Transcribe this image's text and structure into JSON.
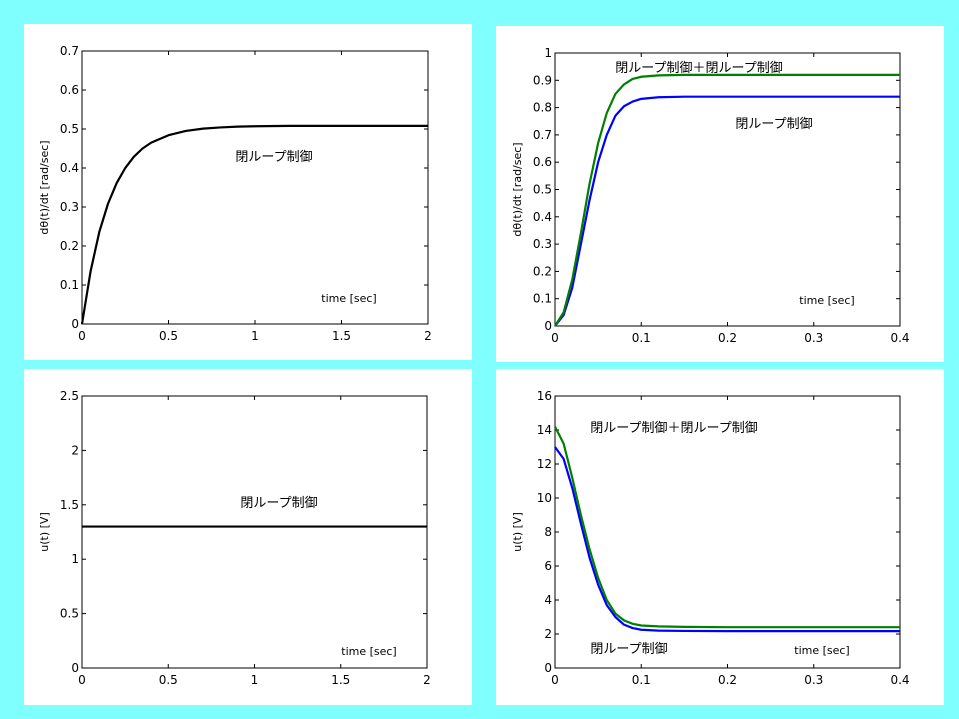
{
  "chart_data": [
    {
      "type": "line",
      "panel": "top-left",
      "xlabel": "time [sec]",
      "ylabel": "dθ(t)/dt [rad/sec]",
      "xlim": [
        0,
        2
      ],
      "ylim": [
        0,
        0.7
      ],
      "xticks": [
        "0",
        "0.5",
        "1",
        "1.5",
        "2"
      ],
      "yticks": [
        "0",
        "0.1",
        "0.2",
        "0.3",
        "0.4",
        "0.5",
        "0.6",
        "0.7"
      ],
      "annotations": [
        "閉ループ制御"
      ],
      "series": [
        {
          "color": "#000000",
          "x": [
            0,
            0.05,
            0.1,
            0.15,
            0.2,
            0.25,
            0.3,
            0.35,
            0.4,
            0.5,
            0.6,
            0.7,
            0.8,
            0.9,
            1.0,
            1.2,
            1.5,
            2.0
          ],
          "y": [
            0,
            0.136,
            0.236,
            0.308,
            0.361,
            0.4,
            0.429,
            0.45,
            0.465,
            0.484,
            0.495,
            0.501,
            0.504,
            0.506,
            0.507,
            0.508,
            0.508,
            0.508
          ]
        }
      ]
    },
    {
      "type": "line",
      "panel": "top-right",
      "xlabel": "time [sec]",
      "ylabel": "dθ(t)/dt [rad/sec]",
      "xlim": [
        0,
        0.4
      ],
      "ylim": [
        0,
        1
      ],
      "xticks": [
        "0",
        "0.1",
        "0.2",
        "0.3",
        "0.4"
      ],
      "yticks": [
        "0",
        "0.1",
        "0.2",
        "0.3",
        "0.4",
        "0.5",
        "0.6",
        "0.7",
        "0.8",
        "0.9",
        "1"
      ],
      "annotations": [
        "閉ループ制御＋閉ループ制御",
        "閉ループ制御"
      ],
      "series": [
        {
          "color": "#0000ff",
          "x": [
            0,
            0.01,
            0.02,
            0.03,
            0.04,
            0.05,
            0.06,
            0.07,
            0.08,
            0.09,
            0.1,
            0.12,
            0.15,
            0.2,
            0.3,
            0.4
          ],
          "y": [
            0,
            0.04,
            0.14,
            0.3,
            0.46,
            0.6,
            0.7,
            0.77,
            0.805,
            0.822,
            0.832,
            0.838,
            0.84,
            0.84,
            0.84,
            0.84
          ]
        },
        {
          "color": "#008000",
          "x": [
            0,
            0.01,
            0.02,
            0.03,
            0.04,
            0.05,
            0.06,
            0.07,
            0.08,
            0.09,
            0.1,
            0.12,
            0.15,
            0.2,
            0.3,
            0.4
          ],
          "y": [
            0,
            0.05,
            0.17,
            0.34,
            0.52,
            0.67,
            0.78,
            0.85,
            0.885,
            0.905,
            0.913,
            0.918,
            0.92,
            0.92,
            0.92,
            0.92
          ]
        }
      ]
    },
    {
      "type": "line",
      "panel": "bottom-left",
      "xlabel": "time [sec]",
      "ylabel": "u(t) [V]",
      "xlim": [
        0,
        2
      ],
      "ylim": [
        0,
        2.5
      ],
      "xticks": [
        "0",
        "0.5",
        "1",
        "1.5",
        "2"
      ],
      "yticks": [
        "0",
        "0.5",
        "1",
        "1.5",
        "2",
        "2.5"
      ],
      "annotations": [
        "閉ループ制御"
      ],
      "series": [
        {
          "color": "#000000",
          "x": [
            0,
            2
          ],
          "y": [
            1.3,
            1.3
          ]
        }
      ]
    },
    {
      "type": "line",
      "panel": "bottom-right",
      "xlabel": "time [sec]",
      "ylabel": "u(t) [V]",
      "xlim": [
        0,
        0.4
      ],
      "ylim": [
        0,
        16
      ],
      "xticks": [
        "0",
        "0.1",
        "0.2",
        "0.3",
        "0.4"
      ],
      "yticks": [
        "0",
        "2",
        "4",
        "6",
        "8",
        "10",
        "12",
        "14",
        "16"
      ],
      "annotations": [
        "閉ループ制御＋閉ループ制御",
        "閉ループ制御"
      ],
      "series": [
        {
          "color": "#0000ff",
          "x": [
            0,
            0.01,
            0.02,
            0.03,
            0.04,
            0.05,
            0.06,
            0.07,
            0.08,
            0.09,
            0.1,
            0.12,
            0.15,
            0.2,
            0.3,
            0.4
          ],
          "y": [
            13.0,
            12.3,
            10.6,
            8.5,
            6.5,
            4.9,
            3.7,
            3.0,
            2.55,
            2.35,
            2.25,
            2.2,
            2.18,
            2.17,
            2.17,
            2.17
          ]
        },
        {
          "color": "#008000",
          "x": [
            0,
            0.01,
            0.02,
            0.03,
            0.04,
            0.05,
            0.06,
            0.07,
            0.08,
            0.09,
            0.1,
            0.12,
            0.15,
            0.2,
            0.3,
            0.4
          ],
          "y": [
            14.2,
            13.2,
            11.2,
            9.0,
            7.0,
            5.3,
            4.0,
            3.2,
            2.8,
            2.6,
            2.5,
            2.45,
            2.42,
            2.4,
            2.4,
            2.4
          ]
        }
      ]
    }
  ]
}
